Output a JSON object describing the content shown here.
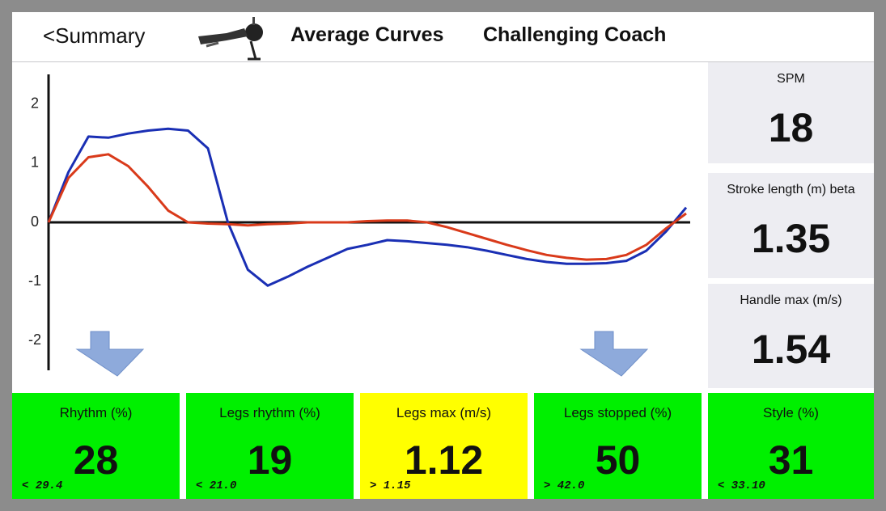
{
  "header": {
    "back": "<Summary",
    "title": "Average Curves",
    "coach": "Challenging Coach"
  },
  "chart_data": {
    "type": "line",
    "ylim": [
      -2.5,
      2.5
    ],
    "yticks": [
      -2,
      -1,
      0,
      1,
      2
    ],
    "series": [
      {
        "color": "#1a2fb4",
        "values": [
          0,
          0.85,
          1.45,
          1.43,
          1.5,
          1.55,
          1.58,
          1.55,
          1.25,
          0.0,
          -0.8,
          -1.07,
          -0.92,
          -0.75,
          -0.6,
          -0.45,
          -0.38,
          -0.3,
          -0.32,
          -0.35,
          -0.38,
          -0.42,
          -0.48,
          -0.55,
          -0.62,
          -0.67,
          -0.7,
          -0.7,
          -0.69,
          -0.65,
          -0.48,
          -0.15,
          0.25
        ]
      },
      {
        "color": "#d93a1a",
        "values": [
          0,
          0.75,
          1.1,
          1.15,
          0.95,
          0.6,
          0.2,
          0.0,
          -0.02,
          -0.03,
          -0.05,
          -0.03,
          -0.02,
          0,
          0,
          0,
          0.02,
          0.03,
          0.03,
          0.0,
          -0.08,
          -0.18,
          -0.28,
          -0.38,
          -0.47,
          -0.55,
          -0.6,
          -0.63,
          -0.62,
          -0.55,
          -0.38,
          -0.1,
          0.15
        ]
      }
    ]
  },
  "metrics": [
    {
      "label": "SPM",
      "value": "18"
    },
    {
      "label": "Stroke length (m) beta",
      "value": "1.35"
    },
    {
      "label": "Handle max (m/s)",
      "value": "1.54"
    }
  ],
  "tiles": [
    {
      "label": "Rhythm (%)",
      "value": "28",
      "threshold": "< 29.4",
      "color": "#00f000"
    },
    {
      "label": "Legs rhythm (%)",
      "value": "19",
      "threshold": "< 21.0",
      "color": "#00f000"
    },
    {
      "label": "Legs max (m/s)",
      "value": "1.12",
      "threshold": "> 1.15",
      "color": "#ffff00"
    },
    {
      "label": "Legs stopped (%)",
      "value": "50",
      "threshold": "> 42.0",
      "color": "#00f000"
    },
    {
      "label": "Style (%)",
      "value": "31",
      "threshold": "< 33.10",
      "color": "#00f000"
    }
  ]
}
